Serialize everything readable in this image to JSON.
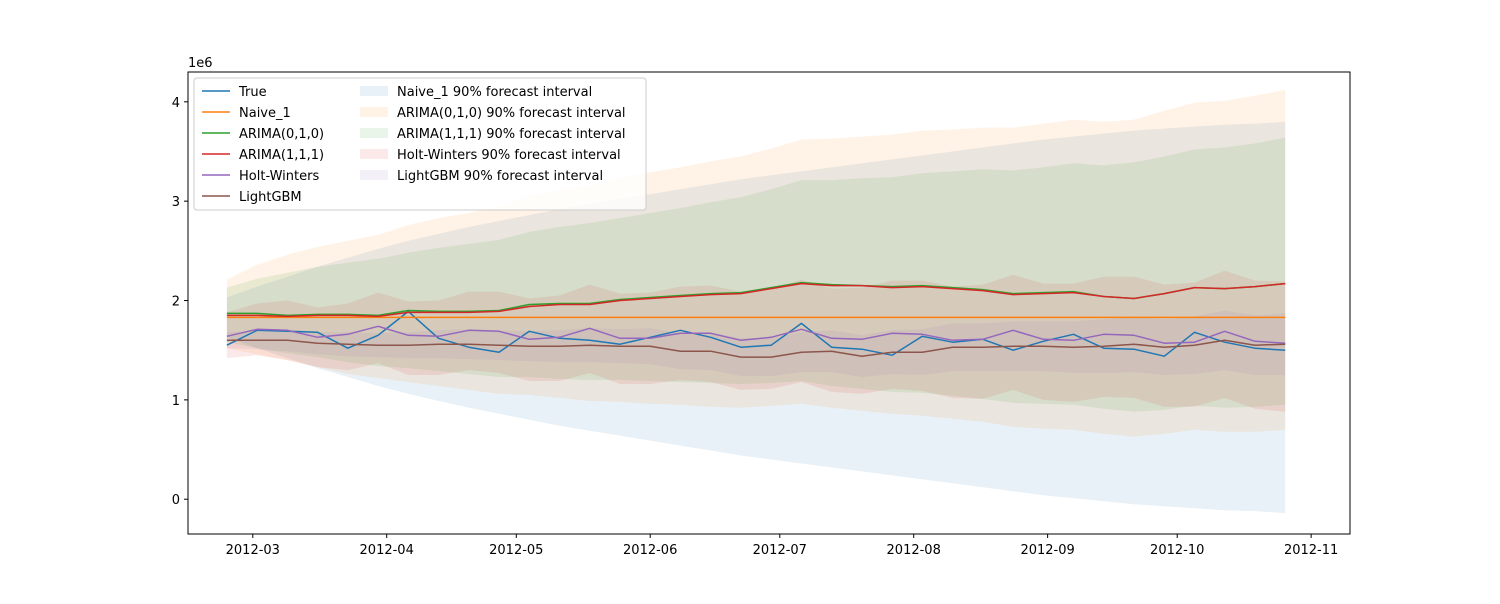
{
  "chart_data": {
    "type": "line",
    "title": "",
    "xlabel": "",
    "ylabel": "",
    "y_offset_label": "1e6",
    "y_scale": 1000000,
    "ylim": [
      -350000,
      4300000
    ],
    "xlim": [
      "2012-02-15",
      "2012-11-10"
    ],
    "grid": false,
    "legend_position": "top-left",
    "x_ticks": [
      "2012-03-01",
      "2012-04-01",
      "2012-05-01",
      "2012-06-01",
      "2012-07-01",
      "2012-08-01",
      "2012-09-01",
      "2012-10-01",
      "2012-11-01"
    ],
    "x_tick_labels": [
      "2012-03",
      "2012-04",
      "2012-05",
      "2012-06",
      "2012-07",
      "2012-08",
      "2012-09",
      "2012-10",
      "2012-11"
    ],
    "y_ticks": [
      0,
      1000000,
      2000000,
      3000000,
      4000000
    ],
    "y_tick_labels": [
      "0",
      "1",
      "2",
      "3",
      "4"
    ],
    "x": [
      "2012-02-24",
      "2012-03-02",
      "2012-03-09",
      "2012-03-16",
      "2012-03-23",
      "2012-03-30",
      "2012-04-06",
      "2012-04-13",
      "2012-04-20",
      "2012-04-27",
      "2012-05-04",
      "2012-05-11",
      "2012-05-18",
      "2012-05-25",
      "2012-06-01",
      "2012-06-08",
      "2012-06-15",
      "2012-06-22",
      "2012-06-29",
      "2012-07-06",
      "2012-07-13",
      "2012-07-20",
      "2012-07-27",
      "2012-08-03",
      "2012-08-10",
      "2012-08-17",
      "2012-08-24",
      "2012-08-31",
      "2012-09-07",
      "2012-09-14",
      "2012-09-21",
      "2012-09-28",
      "2012-10-05",
      "2012-10-12",
      "2012-10-19",
      "2012-10-26"
    ],
    "series": [
      {
        "name": "True",
        "color": "#1f77b4",
        "values": [
          1550000,
          1700000,
          1690000,
          1680000,
          1520000,
          1650000,
          1890000,
          1620000,
          1530000,
          1480000,
          1690000,
          1620000,
          1600000,
          1560000,
          1630000,
          1700000,
          1630000,
          1530000,
          1550000,
          1770000,
          1530000,
          1510000,
          1450000,
          1640000,
          1580000,
          1610000,
          1500000,
          1590000,
          1660000,
          1520000,
          1510000,
          1440000,
          1680000,
          1580000,
          1520000,
          1500000
        ]
      },
      {
        "name": "Naive_1",
        "color": "#ff7f0e",
        "values": [
          1830000,
          1830000,
          1830000,
          1830000,
          1830000,
          1830000,
          1830000,
          1830000,
          1830000,
          1830000,
          1830000,
          1830000,
          1830000,
          1830000,
          1830000,
          1830000,
          1830000,
          1830000,
          1830000,
          1830000,
          1830000,
          1830000,
          1830000,
          1830000,
          1830000,
          1830000,
          1830000,
          1830000,
          1830000,
          1830000,
          1830000,
          1830000,
          1830000,
          1830000,
          1830000,
          1830000
        ]
      },
      {
        "name": "ARIMA(0,1,0)",
        "color": "#2ca02c",
        "values": [
          1870000,
          1870000,
          1850000,
          1860000,
          1860000,
          1850000,
          1900000,
          1890000,
          1890000,
          1900000,
          1960000,
          1970000,
          1970000,
          2010000,
          2030000,
          2050000,
          2070000,
          2080000,
          2130000,
          2180000,
          2160000,
          2150000,
          2140000,
          2150000,
          2130000,
          2110000,
          2070000,
          2080000,
          2090000,
          2040000,
          2020000,
          2070000,
          2130000,
          2120000,
          2140000,
          2170000
        ]
      },
      {
        "name": "ARIMA(1,1,1)",
        "color": "#d62728",
        "values": [
          1850000,
          1850000,
          1840000,
          1850000,
          1850000,
          1840000,
          1880000,
          1880000,
          1880000,
          1890000,
          1940000,
          1960000,
          1960000,
          2000000,
          2020000,
          2040000,
          2060000,
          2070000,
          2120000,
          2170000,
          2150000,
          2150000,
          2130000,
          2140000,
          2120000,
          2100000,
          2060000,
          2070000,
          2080000,
          2040000,
          2020000,
          2070000,
          2130000,
          2120000,
          2140000,
          2170000
        ]
      },
      {
        "name": "Holt-Winters",
        "color": "#9467bd",
        "values": [
          1640000,
          1710000,
          1700000,
          1630000,
          1660000,
          1740000,
          1650000,
          1640000,
          1700000,
          1690000,
          1610000,
          1630000,
          1720000,
          1620000,
          1620000,
          1670000,
          1670000,
          1600000,
          1630000,
          1710000,
          1620000,
          1610000,
          1670000,
          1660000,
          1600000,
          1610000,
          1700000,
          1610000,
          1600000,
          1660000,
          1650000,
          1570000,
          1580000,
          1690000,
          1590000,
          1570000
        ]
      },
      {
        "name": "LightGBM",
        "color": "#8c564b",
        "values": [
          1600000,
          1600000,
          1600000,
          1570000,
          1560000,
          1550000,
          1550000,
          1560000,
          1560000,
          1550000,
          1540000,
          1540000,
          1550000,
          1540000,
          1540000,
          1490000,
          1490000,
          1430000,
          1430000,
          1480000,
          1490000,
          1440000,
          1480000,
          1480000,
          1530000,
          1530000,
          1540000,
          1540000,
          1530000,
          1540000,
          1560000,
          1530000,
          1550000,
          1600000,
          1550000,
          1560000
        ]
      }
    ],
    "intervals": [
      {
        "name": "Naive_1 90% forecast interval",
        "color": "#1f77b4",
        "lower": [
          1630000,
          1520000,
          1420000,
          1320000,
          1230000,
          1140000,
          1060000,
          990000,
          920000,
          860000,
          800000,
          740000,
          690000,
          640000,
          590000,
          540000,
          490000,
          440000,
          400000,
          360000,
          320000,
          280000,
          240000,
          200000,
          160000,
          120000,
          80000,
          40000,
          10000,
          -20000,
          -50000,
          -70000,
          -90000,
          -110000,
          -120000,
          -140000
        ],
        "upper": [
          2030000,
          2140000,
          2240000,
          2340000,
          2430000,
          2520000,
          2600000,
          2670000,
          2740000,
          2800000,
          2860000,
          2920000,
          2970000,
          3020000,
          3070000,
          3120000,
          3170000,
          3220000,
          3260000,
          3300000,
          3340000,
          3380000,
          3420000,
          3460000,
          3500000,
          3540000,
          3580000,
          3620000,
          3650000,
          3680000,
          3710000,
          3730000,
          3750000,
          3770000,
          3780000,
          3800000
        ]
      },
      {
        "name": "ARIMA(0,1,0) 90% forecast interval",
        "color": "#ff7f0e",
        "lower": [
          1520000,
          1460000,
          1400000,
          1330000,
          1260000,
          1220000,
          1180000,
          1140000,
          1100000,
          1060000,
          1050000,
          1020000,
          990000,
          980000,
          960000,
          950000,
          930000,
          920000,
          940000,
          960000,
          920000,
          890000,
          860000,
          840000,
          810000,
          780000,
          730000,
          710000,
          700000,
          660000,
          630000,
          660000,
          700000,
          680000,
          680000,
          700000
        ],
        "upper": [
          2210000,
          2360000,
          2460000,
          2540000,
          2600000,
          2660000,
          2760000,
          2830000,
          2880000,
          2950000,
          3060000,
          3120000,
          3160000,
          3240000,
          3290000,
          3340000,
          3400000,
          3450000,
          3530000,
          3620000,
          3630000,
          3650000,
          3670000,
          3710000,
          3720000,
          3740000,
          3740000,
          3780000,
          3820000,
          3800000,
          3820000,
          3910000,
          3990000,
          4010000,
          4060000,
          4120000
        ]
      },
      {
        "name": "ARIMA(1,1,1) 90% forecast interval",
        "color": "#2ca02c",
        "lower": [
          1580000,
          1520000,
          1470000,
          1430000,
          1380000,
          1340000,
          1320000,
          1290000,
          1260000,
          1230000,
          1230000,
          1210000,
          1200000,
          1200000,
          1190000,
          1180000,
          1170000,
          1160000,
          1170000,
          1190000,
          1140000,
          1110000,
          1080000,
          1070000,
          1040000,
          1010000,
          970000,
          960000,
          950000,
          910000,
          880000,
          900000,
          940000,
          920000,
          930000,
          950000
        ],
        "upper": [
          2130000,
          2220000,
          2280000,
          2340000,
          2380000,
          2420000,
          2480000,
          2530000,
          2570000,
          2610000,
          2690000,
          2740000,
          2780000,
          2830000,
          2880000,
          2930000,
          2990000,
          3040000,
          3120000,
          3210000,
          3210000,
          3230000,
          3240000,
          3280000,
          3300000,
          3320000,
          3310000,
          3340000,
          3380000,
          3360000,
          3390000,
          3450000,
          3520000,
          3540000,
          3580000,
          3640000
        ]
      },
      {
        "name": "Holt-Winters 90% forecast interval",
        "color": "#d62728",
        "lower": [
          1420000,
          1450000,
          1400000,
          1330000,
          1300000,
          1370000,
          1250000,
          1250000,
          1300000,
          1270000,
          1190000,
          1190000,
          1270000,
          1160000,
          1160000,
          1200000,
          1180000,
          1100000,
          1110000,
          1180000,
          1080000,
          1060000,
          1110000,
          1090000,
          1020000,
          1010000,
          1100000,
          1000000,
          980000,
          1030000,
          1020000,
          930000,
          930000,
          1020000,
          910000,
          880000
        ],
        "upper": [
          1880000,
          1970000,
          2000000,
          1930000,
          1970000,
          2080000,
          1990000,
          2000000,
          2090000,
          2090000,
          2020000,
          2050000,
          2160000,
          2070000,
          2080000,
          2140000,
          2150000,
          2090000,
          2120000,
          2210000,
          2120000,
          2130000,
          2200000,
          2200000,
          2140000,
          2160000,
          2260000,
          2170000,
          2170000,
          2240000,
          2240000,
          2160000,
          2180000,
          2300000,
          2200000,
          2190000
        ]
      },
      {
        "name": "LightGBM 90% forecast interval",
        "color": "#9467bd",
        "lower": [
          1520000,
          1510000,
          1490000,
          1460000,
          1440000,
          1430000,
          1420000,
          1420000,
          1410000,
          1400000,
          1390000,
          1380000,
          1380000,
          1370000,
          1360000,
          1310000,
          1300000,
          1240000,
          1240000,
          1280000,
          1280000,
          1230000,
          1260000,
          1250000,
          1290000,
          1290000,
          1290000,
          1290000,
          1270000,
          1270000,
          1280000,
          1250000,
          1260000,
          1300000,
          1250000,
          1250000
        ],
        "upper": [
          1680000,
          1690000,
          1710000,
          1680000,
          1680000,
          1670000,
          1680000,
          1700000,
          1710000,
          1700000,
          1690000,
          1700000,
          1720000,
          1710000,
          1720000,
          1670000,
          1680000,
          1620000,
          1620000,
          1680000,
          1700000,
          1650000,
          1700000,
          1710000,
          1770000,
          1770000,
          1790000,
          1790000,
          1790000,
          1810000,
          1840000,
          1810000,
          1840000,
          1900000,
          1850000,
          1870000
        ]
      }
    ]
  }
}
